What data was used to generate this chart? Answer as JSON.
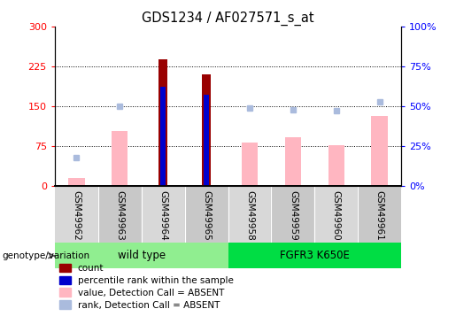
{
  "title": "GDS1234 / AF027571_s_at",
  "samples": [
    "GSM49962",
    "GSM49963",
    "GSM49964",
    "GSM49965",
    "GSM49958",
    "GSM49959",
    "GSM49960",
    "GSM49961"
  ],
  "groups": [
    {
      "label": "wild type",
      "indices": [
        0,
        1,
        2,
        3
      ],
      "color": "#90EE90"
    },
    {
      "label": "FGFR3 K650E",
      "indices": [
        4,
        5,
        6,
        7
      ],
      "color": "#00DD44"
    }
  ],
  "count_values": [
    null,
    null,
    238,
    210,
    null,
    null,
    null,
    null
  ],
  "rank_values_pct": [
    null,
    null,
    62,
    57,
    null,
    null,
    null,
    null
  ],
  "absent_value": [
    15,
    103,
    null,
    null,
    82,
    92,
    76,
    132
  ],
  "absent_rank_pct": [
    18,
    50,
    null,
    null,
    49,
    48,
    47,
    53
  ],
  "ylim_left": [
    0,
    300
  ],
  "ylim_right": [
    0,
    100
  ],
  "yticks_left": [
    0,
    75,
    150,
    225,
    300
  ],
  "yticks_right": [
    0,
    25,
    50,
    75,
    100
  ],
  "ytick_labels_left": [
    "0",
    "75",
    "150",
    "225",
    "300"
  ],
  "ytick_labels_right": [
    "0%",
    "25%",
    "50%",
    "75%",
    "100%"
  ],
  "hlines": [
    75,
    150,
    225
  ],
  "count_color": "#990000",
  "rank_color": "#0000cc",
  "absent_value_color": "#FFB6C1",
  "absent_rank_color": "#AABBDD",
  "bg_color": "#ffffff",
  "xlabel_bg_even": "#d8d8d8",
  "xlabel_bg_odd": "#c8c8c8",
  "legend_items": [
    {
      "label": "count",
      "color": "#990000"
    },
    {
      "label": "percentile rank within the sample",
      "color": "#0000cc"
    },
    {
      "label": "value, Detection Call = ABSENT",
      "color": "#FFB6C1"
    },
    {
      "label": "rank, Detection Call = ABSENT",
      "color": "#AABBDD"
    }
  ],
  "genotype_label": "genotype/variation"
}
